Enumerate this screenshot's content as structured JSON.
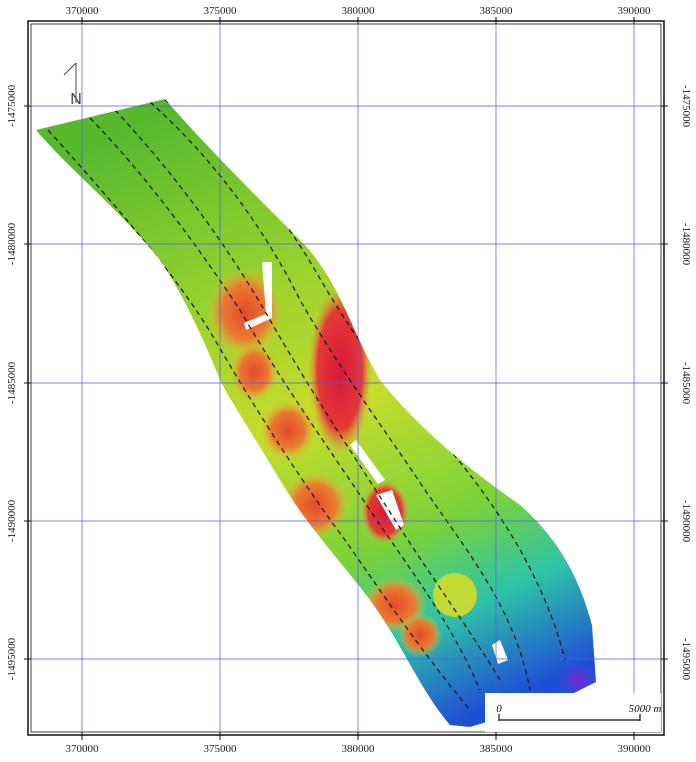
{
  "map": {
    "x_ticks": [
      "370000",
      "375000",
      "380000",
      "385000",
      "390000"
    ],
    "y_ticks": [
      "-1475000",
      "-1480000",
      "-1485000",
      "-1490000",
      "-1495000"
    ],
    "north_label": "N",
    "scale_bar": {
      "start_label": "0",
      "end_label": "5000 m"
    },
    "colors": {
      "grid": "#5555ee",
      "ridge_low": "#4caf2a",
      "ridge_mid": "#d6e02a",
      "ridge_high": "#e2542a",
      "deep_blue": "#1f4fd6",
      "track_line": "#111111"
    }
  }
}
